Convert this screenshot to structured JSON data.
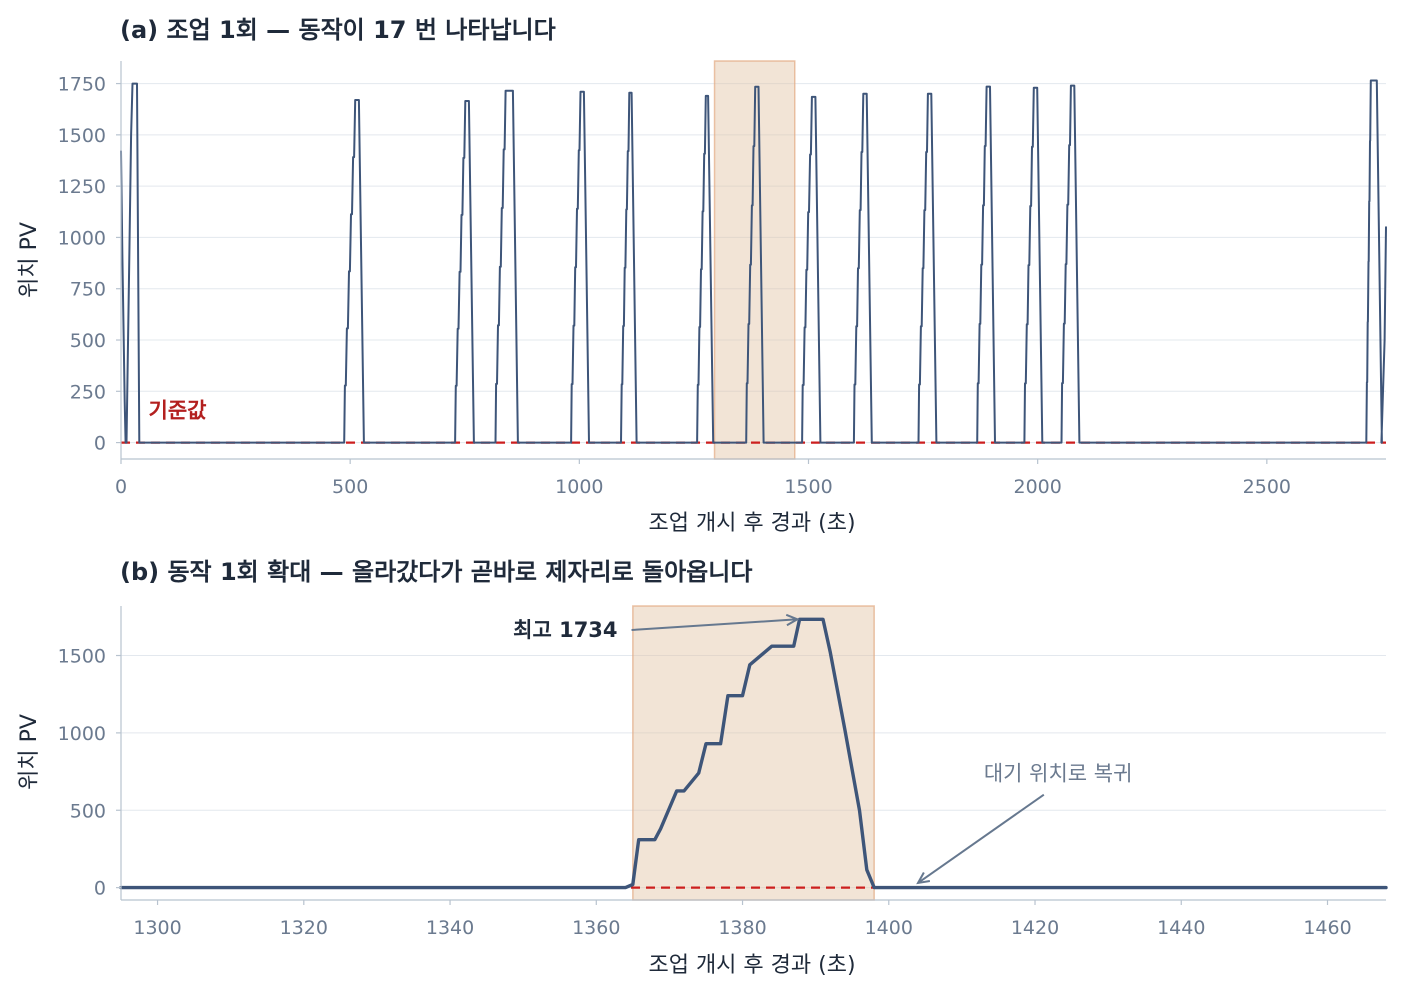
{
  "chart_data": [
    {
      "type": "line",
      "title": "(a) 조업 1회 — 동작이 17 번 나타납니다",
      "xlabel": "조업 개시 후 경과 (초)",
      "ylabel": "위치 PV",
      "xlim": [
        0,
        2760
      ],
      "ylim": [
        -80,
        1860
      ],
      "xticks": [
        0,
        500,
        1000,
        1500,
        2000,
        2500
      ],
      "yticks": [
        0,
        250,
        500,
        750,
        1000,
        1250,
        1500,
        1750
      ],
      "grid": "horizontal",
      "baseline": {
        "value": 0,
        "label": "기준값",
        "color": "#cc1f1f"
      },
      "highlight": {
        "x": [
          1295,
          1470
        ]
      },
      "peaks": [
        {
          "start": 0,
          "peak": 1750,
          "top_from": 25,
          "top_to": 35
        },
        {
          "start": 488,
          "peak": 1670,
          "top_from": 515,
          "top_to": 519
        },
        {
          "start": 730,
          "peak": 1665,
          "top_from": 755,
          "top_to": 759
        },
        {
          "start": 818,
          "peak": 1715,
          "top_from": 843,
          "top_to": 855
        },
        {
          "start": 983,
          "peak": 1710,
          "top_from": 1006,
          "top_to": 1010
        },
        {
          "start": 1092,
          "peak": 1705,
          "top_from": 1112,
          "top_to": 1114
        },
        {
          "start": 1258,
          "peak": 1690,
          "top_from": 1279,
          "top_to": 1281
        },
        {
          "start": 1365,
          "peak": 1734,
          "top_from": 1387,
          "top_to": 1391
        },
        {
          "start": 1487,
          "peak": 1685,
          "top_from": 1511,
          "top_to": 1515
        },
        {
          "start": 1600,
          "peak": 1700,
          "top_from": 1623,
          "top_to": 1627
        },
        {
          "start": 1741,
          "peak": 1700,
          "top_from": 1764,
          "top_to": 1768
        },
        {
          "start": 1869,
          "peak": 1735,
          "top_from": 1892,
          "top_to": 1896
        },
        {
          "start": 1972,
          "peak": 1730,
          "top_from": 1995,
          "top_to": 1999
        },
        {
          "start": 2053,
          "peak": 1740,
          "top_from": 2076,
          "top_to": 2080
        },
        {
          "start": 2718,
          "peak": 1765,
          "top_from": 2728,
          "top_to": 2740
        }
      ],
      "edges": [
        {
          "x": [
            0,
            3,
            8,
            10
          ],
          "y": [
            1420,
            900,
            200,
            0
          ]
        },
        {
          "x": [
            2750,
            2757,
            2760
          ],
          "y": [
            0,
            500,
            1050
          ]
        }
      ]
    },
    {
      "type": "line",
      "title": "(b) 동작 1회 확대 — 올라갔다가 곧바로 제자리로 돌아옵니다",
      "xlabel": "조업 개시 후 경과 (초)",
      "ylabel": "위치 PV",
      "xlim": [
        1295,
        1468
      ],
      "ylim": [
        -80,
        1820
      ],
      "xticks": [
        1300,
        1320,
        1340,
        1360,
        1380,
        1400,
        1420,
        1440,
        1460
      ],
      "yticks": [
        0,
        500,
        1000,
        1500
      ],
      "grid": "horizontal",
      "baseline": {
        "value": 0,
        "color": "#cc1f1f"
      },
      "highlight": {
        "x": [
          1365,
          1398
        ]
      },
      "x": [
        1295,
        1364,
        1365,
        1365.8,
        1368,
        1368.8,
        1371,
        1372,
        1374,
        1375,
        1377,
        1378,
        1380,
        1381,
        1384,
        1385,
        1387,
        1387.8,
        1391,
        1392,
        1394,
        1396,
        1397,
        1398,
        1468
      ],
      "y": [
        0,
        0,
        20,
        310,
        310,
        380,
        625,
        625,
        740,
        930,
        930,
        1240,
        1240,
        1440,
        1560,
        1560,
        1560,
        1734,
        1734,
        1520,
        1020,
        500,
        115,
        0,
        0
      ],
      "annotations": [
        {
          "text": "최고 1734",
          "point": [
            1387.5,
            1734
          ],
          "text_pos": [
            1364,
            1665
          ],
          "style": "bold"
        },
        {
          "text": "대기 위치로 복귀",
          "point": [
            1404,
            30
          ],
          "text_pos": [
            1413,
            730
          ],
          "style": "soft"
        }
      ]
    }
  ]
}
